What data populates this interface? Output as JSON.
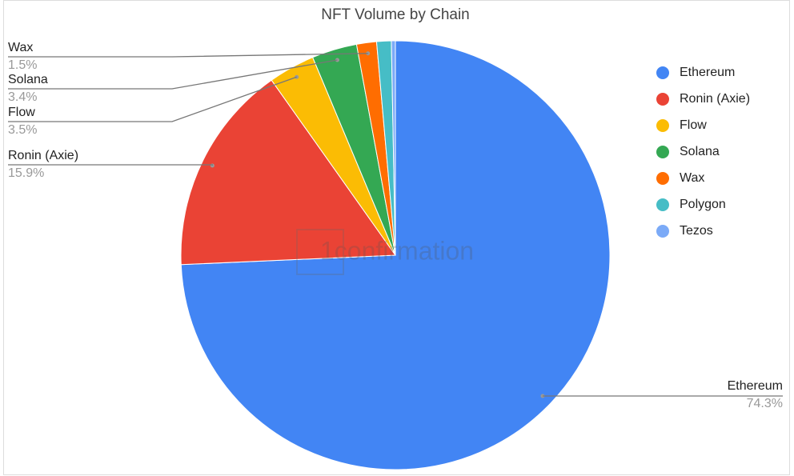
{
  "chart_data": {
    "type": "pie",
    "title": "NFT Volume by Chain",
    "categories": [
      "Ethereum",
      "Ronin (Axie)",
      "Flow",
      "Solana",
      "Wax",
      "Polygon",
      "Tezos"
    ],
    "values": [
      74.3,
      15.9,
      3.5,
      3.4,
      1.5,
      1.1,
      0.3
    ],
    "value_labels": [
      "74.3%",
      "15.9%",
      "3.5%",
      "3.4%",
      "1.5%",
      null,
      null
    ],
    "colors": [
      "#4285f4",
      "#ea4335",
      "#fbbc04",
      "#34a853",
      "#ff6d01",
      "#46bdc6",
      "#7baaf7"
    ],
    "legend": "right",
    "watermark": "1confirmation"
  }
}
